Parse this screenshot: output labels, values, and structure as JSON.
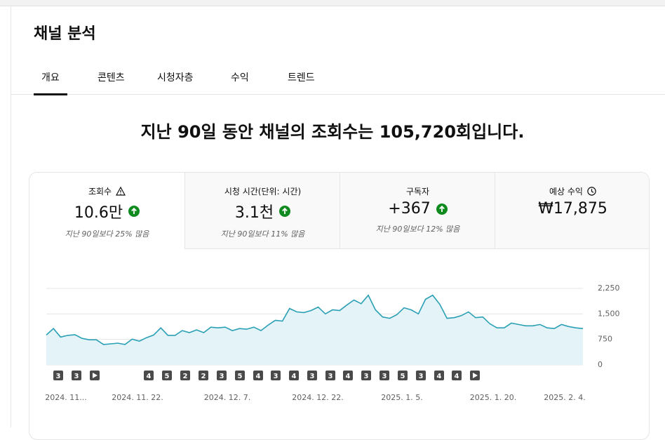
{
  "header": {
    "title": "채널 분석"
  },
  "tabs": [
    "개요",
    "콘텐츠",
    "시청자층",
    "수익",
    "트렌드"
  ],
  "headline": [
    "지난 ",
    "90",
    "일 동안 채널의 조회수는 ",
    "105,720",
    "회입니다."
  ],
  "metrics": [
    {
      "label": "조회수",
      "value": "10.6만",
      "note": "지난 90일보다 25% 많음"
    },
    {
      "label": "시청 시간(단위: 시간)",
      "value": "3.1천",
      "note": "지난 90일보다 11% 많음"
    },
    {
      "label": "구독자",
      "value": "+367",
      "note": "지난 90일보다 12% 많음"
    },
    {
      "label": "예상 수익",
      "value": "₩17,875"
    }
  ],
  "chart_data": {
    "type": "area",
    "series": [
      {
        "name": "조회수",
        "color": "#2aa0b5",
        "values": [
          880,
          1070,
          820,
          870,
          890,
          780,
          740,
          740,
          600,
          620,
          640,
          600,
          760,
          700,
          800,
          880,
          1090,
          870,
          870,
          1010,
          950,
          1030,
          950,
          1110,
          1090,
          1110,
          1010,
          1070,
          1050,
          1110,
          1010,
          1170,
          1310,
          1290,
          1660,
          1560,
          1540,
          1600,
          1700,
          1500,
          1620,
          1600,
          1760,
          1910,
          1800,
          2050,
          1620,
          1410,
          1370,
          1480,
          1680,
          1620,
          1500,
          1930,
          2050,
          1780,
          1370,
          1390,
          1450,
          1560,
          1390,
          1410,
          1210,
          1090,
          1090,
          1230,
          1190,
          1150,
          1150,
          1190,
          1090,
          1070,
          1190,
          1130,
          1090,
          1070
        ]
      }
    ],
    "ylim": [
      0,
      2250
    ],
    "yticks": [
      0,
      750,
      {
        "value": 1500,
        "label": "1,500"
      },
      {
        "value": 2250,
        "label": "2,250"
      }
    ],
    "xlabels": [
      "2024. 11...",
      "2024. 11. 22.",
      "2024. 12. 7.",
      "2024. 12. 22.",
      "2025. 1. 5.",
      "2025. 1. 20.",
      "2025. 2. 4."
    ],
    "markers": [
      "3",
      "3",
      null,
      "4",
      "5",
      "2",
      "2",
      "3",
      "5",
      "4",
      "3",
      "4",
      "3",
      "3",
      "4",
      "3",
      "3",
      "5",
      "3",
      "4",
      "4",
      null
    ],
    "grid": true
  }
}
